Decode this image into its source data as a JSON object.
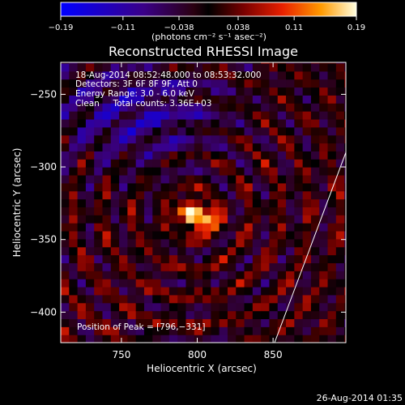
{
  "chart_data": {
    "type": "heatmap",
    "title": "Reconstructed RHESSI Image",
    "xlabel": "Heliocentric X (arcsec)",
    "ylabel": "Heliocentric Y (arcsec)",
    "xlim": [
      710,
      898
    ],
    "ylim": [
      -421,
      -228
    ],
    "xticks": [
      750,
      800,
      850
    ],
    "xtick_labels": [
      "750",
      "800",
      "850"
    ],
    "yticks": [
      -250,
      -300,
      -350,
      -400
    ],
    "ytick_labels": [
      "−250",
      "−300",
      "−350",
      "−400"
    ],
    "colorbar": {
      "range": [
        -0.19,
        0.19
      ],
      "ticks": [
        -0.19,
        -0.11,
        -0.038,
        0.038,
        0.11,
        0.19
      ],
      "tick_labels": [
        "−0.19",
        "−0.11",
        "−0.038",
        "0.038",
        "0.11",
        "0.19"
      ],
      "units_label": "(photons cm⁻² s⁻¹ asec⁻²)"
    },
    "annotations": [
      "18-Aug-2014 08:52:48.000 to 08:53:32.000",
      "Detectors: 3F 6F 8F 9F, Att 0",
      "Energy Range: 3.0 - 6.0 keV",
      "Clean     Total counts: 3.36E+03"
    ],
    "peak_label": "Position of Peak = [796,−331]",
    "peak": {
      "x": 796,
      "y": -331,
      "value": 0.19
    },
    "limb_line": {
      "x": [
        851,
        898
      ],
      "y": [
        -421,
        -290
      ]
    },
    "grid": false
  },
  "footer_date": "26-Aug-2014 01:35",
  "colors": {
    "background": "#000000",
    "text": "#ffffff"
  }
}
